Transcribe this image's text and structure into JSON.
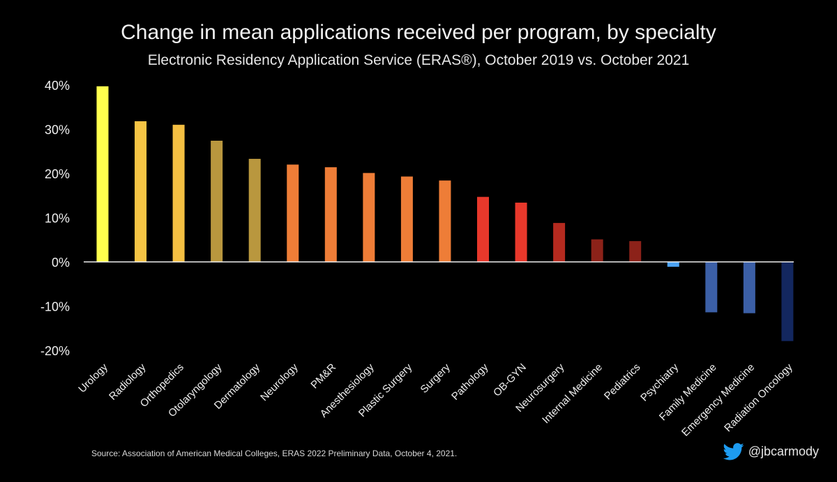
{
  "chart_data": {
    "type": "bar",
    "title": "Change in mean applications received per program, by specialty",
    "subtitle": "Electronic Residency Application Service (ERAS®), October 2019 vs. October 2021",
    "categories": [
      "Urology",
      "Radiology",
      "Orthopedics",
      "Otolaryngology",
      "Dermatology",
      "Neurology",
      "PM&R",
      "Anesthesiology",
      "Plastic Surgery",
      "Surgery",
      "Pathology",
      "OB-GYN",
      "Neurosurgery",
      "Internal Medicine",
      "Pediatrics",
      "Psychiatry",
      "Family Medicine",
      "Emergency Medicine",
      "Radiation Oncology"
    ],
    "values": [
      39.7,
      31.8,
      31.0,
      27.4,
      23.3,
      22.0,
      21.4,
      20.1,
      19.3,
      18.4,
      14.7,
      13.4,
      8.8,
      5.1,
      4.7,
      -1.1,
      -11.4,
      -11.6,
      -17.9
    ],
    "colors": [
      "#ffff4d",
      "#f5c444",
      "#f4bf42",
      "#b9973e",
      "#b9973e",
      "#ee7d37",
      "#ee7d37",
      "#ee7d37",
      "#ee7d37",
      "#ee7d37",
      "#e8382b",
      "#e8382b",
      "#b52a1f",
      "#8c2219",
      "#8c2219",
      "#4ca3f2",
      "#3b5fa6",
      "#3b5fa6",
      "#13275f"
    ],
    "yticks": [
      "40%",
      "30%",
      "20%",
      "10%",
      "0%",
      "-10%",
      "-20%"
    ],
    "ytick_values": [
      40,
      30,
      20,
      10,
      0,
      -10,
      -20
    ],
    "ylim": [
      -20,
      40
    ],
    "grid": false,
    "legend": "none"
  },
  "source": "Source: Association of American Medical Colleges, ERAS 2022 Preliminary Data, October 4, 2021.",
  "handle": "@jbcarmody",
  "icons": {
    "twitter": "twitter-bird-icon"
  }
}
